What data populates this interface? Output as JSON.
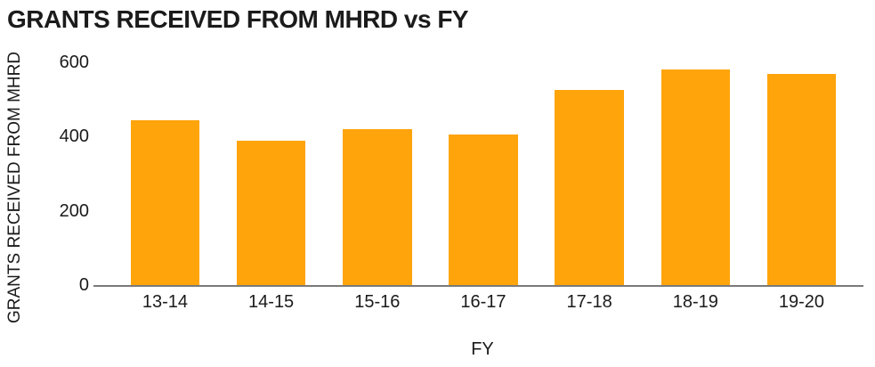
{
  "chart_data": {
    "type": "bar",
    "title": "GRANTS RECEIVED FROM MHRD vs FY",
    "xlabel": "FY",
    "ylabel": "GRANTS RECEIVED FROM MHRD",
    "categories": [
      "13-14",
      "14-15",
      "15-16",
      "16-17",
      "17-18",
      "18-19",
      "19-20"
    ],
    "values": [
      445,
      390,
      420,
      405,
      525,
      580,
      570
    ],
    "ylim": [
      0,
      600
    ],
    "yticks": [
      0,
      200,
      400,
      600
    ],
    "bar_color": "#FFA40B",
    "axis_line_color": "#7a7a7a",
    "text_color": "#1b1b1b",
    "background": "#ffffff",
    "grid": false,
    "legend_position": "none"
  }
}
